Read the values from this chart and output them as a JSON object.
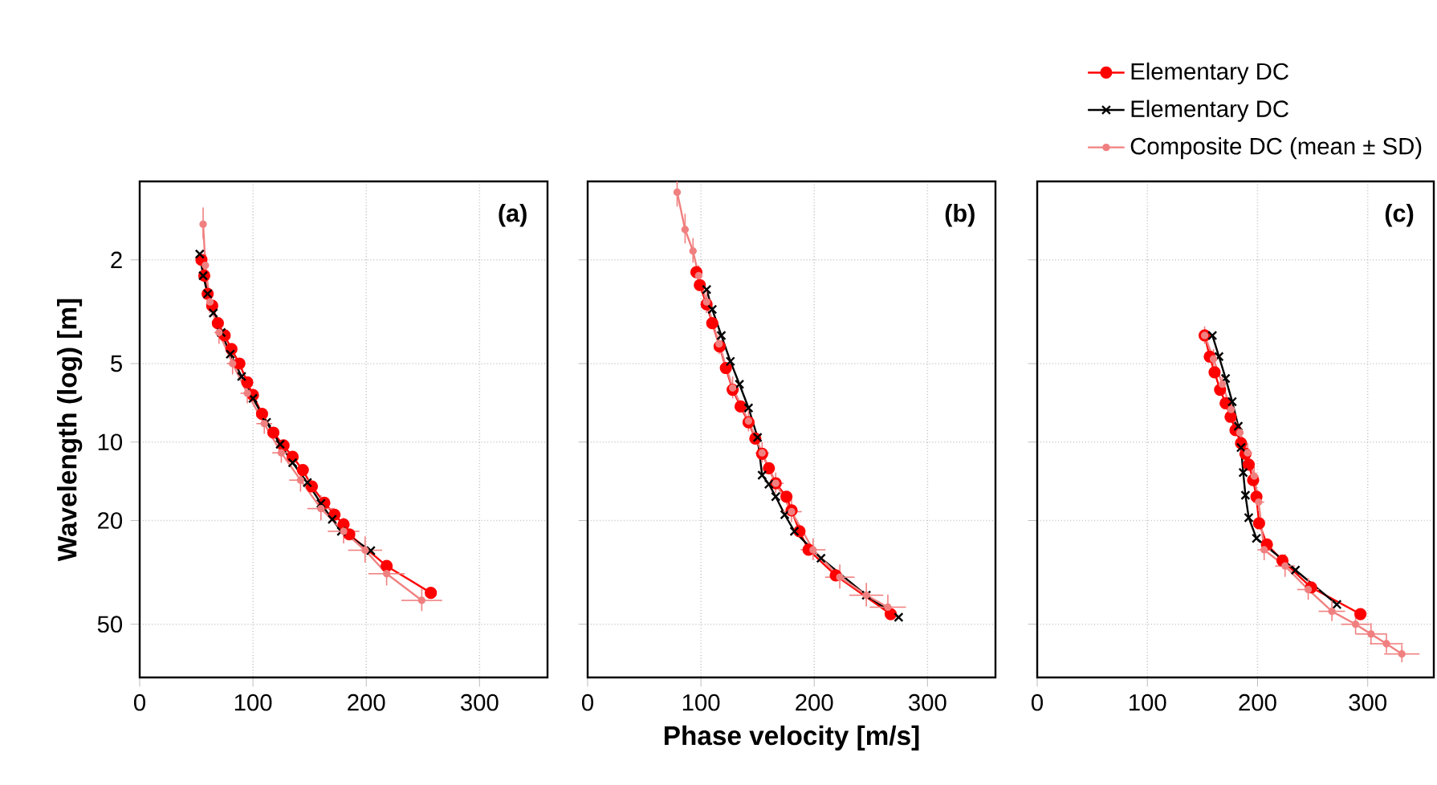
{
  "chart_data": [
    {
      "type": "line",
      "title": "(a)",
      "ylabel": "Wavelength (log) [m]",
      "log": "y",
      "grid": true,
      "xlim": [
        0,
        360
      ],
      "xticks": [
        0,
        100,
        200,
        300
      ],
      "ylim": [
        80,
        1
      ],
      "yticks": [
        2,
        5,
        10,
        20,
        50
      ],
      "line_style": "solid",
      "series": [
        {
          "color": "#ff0000",
          "marker": "circle",
          "x": [
            54.5,
            57,
            60,
            64,
            69,
            75,
            81,
            88,
            95,
            100,
            108,
            118,
            127,
            135,
            144,
            152,
            163,
            172,
            180,
            185,
            218,
            257
          ],
          "values": [
            2.0,
            2.3,
            2.7,
            3.0,
            3.5,
            3.9,
            4.4,
            5.0,
            5.9,
            6.6,
            7.8,
            9.2,
            10.3,
            11.4,
            12.8,
            14.8,
            17.1,
            19,
            20.7,
            22.6,
            29.9,
            37.9
          ]
        },
        {
          "color": "#000000",
          "marker": "cross",
          "x": [
            53,
            56,
            60,
            65,
            72,
            80,
            90,
            100,
            112,
            124,
            135,
            148,
            160,
            170,
            178,
            204
          ],
          "values": [
            1.9,
            2.3,
            2.7,
            3.2,
            3.8,
            4.6,
            5.6,
            6.8,
            8.4,
            10.2,
            12,
            14.3,
            17.2,
            19.8,
            22,
            26.1
          ]
        },
        {
          "color": "#f08080",
          "marker": "circle",
          "x": [
            56,
            58,
            62,
            70,
            82,
            95,
            110,
            125,
            142,
            160,
            180,
            199,
            218,
            249
          ],
          "values": [
            1.46,
            2.1,
            2.9,
            3.8,
            5.0,
            6.5,
            8.5,
            11,
            14,
            18,
            22,
            26,
            32,
            40.5
          ],
          "xerrors": [
            2,
            3,
            3,
            4,
            5,
            6,
            7,
            8,
            10,
            12,
            14,
            15,
            16,
            18
          ],
          "errors": [
            0.2,
            0.2,
            0.3,
            0.4,
            0.5,
            0.6,
            0.8,
            1,
            1.5,
            2,
            2.5,
            3,
            3.5,
            4
          ]
        }
      ]
    },
    {
      "type": "line",
      "title": "(b)",
      "xlabel": "Phase velocity [m/s]",
      "log": "y",
      "grid": true,
      "tick_labels": "x",
      "xlim": [
        0,
        360
      ],
      "xticks": [
        0,
        100,
        200,
        300
      ],
      "ylim": [
        80,
        1
      ],
      "yticks": [
        2,
        5,
        10,
        20,
        50
      ],
      "line_style": "solid",
      "series": [
        {
          "color": "#ff0000",
          "marker": "circle",
          "x": [
            96,
            99,
            105,
            110,
            116.5,
            122,
            128,
            135,
            142,
            148,
            154,
            160,
            166,
            175.5,
            180,
            187,
            195,
            219,
            267.5
          ],
          "values": [
            2.23,
            2.5,
            2.96,
            3.5,
            4.3,
            5.2,
            6.3,
            7.3,
            8.4,
            9.7,
            11.1,
            12.6,
            14.4,
            16.2,
            18.3,
            22,
            25.9,
            32.5,
            45.7
          ]
        },
        {
          "color": "#000000",
          "marker": "cross",
          "x": [
            105,
            110,
            118,
            126,
            134,
            142,
            150,
            154,
            160,
            166,
            174,
            182.5,
            206,
            246,
            274.5
          ],
          "values": [
            2.6,
            3.1,
            3.9,
            4.9,
            6.0,
            7.4,
            9.6,
            13.4,
            14.5,
            16.2,
            19,
            22,
            27.9,
            38.7,
            47
          ]
        },
        {
          "color": "#f08080",
          "marker": "circle",
          "x": [
            79,
            86,
            93,
            98,
            105,
            116,
            128,
            142,
            154,
            166,
            180,
            199,
            222.6,
            246,
            265
          ],
          "values": [
            1.1,
            1.53,
            1.85,
            2.3,
            2.9,
            4.2,
            6.2,
            8.3,
            11,
            14.4,
            18.5,
            25.9,
            33,
            38.7,
            43
          ],
          "xerrors": [
            3,
            3,
            3,
            3,
            3,
            4,
            4,
            5,
            6,
            7,
            9,
            11,
            13,
            15,
            16
          ],
          "errors": [
            0.15,
            0.2,
            0.2,
            0.2,
            0.3,
            0.4,
            0.6,
            0.8,
            1,
            1.3,
            1.8,
            2.5,
            3.5,
            4,
            4.5
          ]
        }
      ]
    },
    {
      "type": "line",
      "title": "(c)",
      "log": "y",
      "grid": true,
      "tick_labels": "x",
      "legend": "top right",
      "xlim": [
        0,
        360
      ],
      "xticks": [
        0,
        100,
        200,
        300
      ],
      "ylim": [
        80,
        1
      ],
      "yticks": [
        2,
        5,
        10,
        20,
        50
      ],
      "line_style": "solid",
      "series": [
        {
          "name": "Elementary DC",
          "color": "#ff0000",
          "marker": "circle",
          "x": [
            152,
            156.6,
            161,
            166,
            171,
            175.5,
            180,
            185,
            189,
            192,
            196,
            199,
            201.4,
            208.5,
            222.6,
            248.6,
            293.4
          ],
          "values": [
            3.9,
            4.7,
            5.4,
            6.3,
            7.1,
            8.0,
            9.0,
            10.1,
            11.1,
            12.2,
            14,
            16.2,
            20.5,
            24.7,
            28.5,
            36.1,
            45.7
          ]
        },
        {
          "name": "Elementary DC",
          "color": "#000000",
          "marker": "cross",
          "x": [
            159,
            165,
            171,
            177,
            182.5,
            185,
            187,
            189,
            192,
            199,
            234.4,
            272
          ],
          "values": [
            3.9,
            4.7,
            5.7,
            7.0,
            8.7,
            10.5,
            13.1,
            16,
            19.5,
            23.4,
            31,
            42
          ]
        },
        {
          "name": "Composite DC (mean ± SD)",
          "color": "#f08080",
          "marker": "circle",
          "x": [
            152,
            160,
            168,
            176,
            184,
            191,
            197,
            201,
            206,
            225,
            246,
            267.5,
            289,
            303,
            317,
            331
          ],
          "values": [
            3.9,
            4.8,
            6.0,
            7.5,
            9.2,
            11,
            13.5,
            17,
            25.9,
            29.9,
            36.8,
            44.6,
            50,
            54.5,
            59.4,
            65
          ],
          "xerrors": [
            2,
            2,
            3,
            3,
            3,
            4,
            4,
            5,
            6,
            9,
            10,
            12,
            13,
            14,
            15,
            16
          ],
          "errors": [
            0.3,
            0.4,
            0.5,
            0.6,
            0.7,
            0.9,
            1.1,
            1.4,
            2.5,
            3,
            3.5,
            4,
            4.5,
            5,
            5,
            5
          ]
        }
      ]
    }
  ]
}
